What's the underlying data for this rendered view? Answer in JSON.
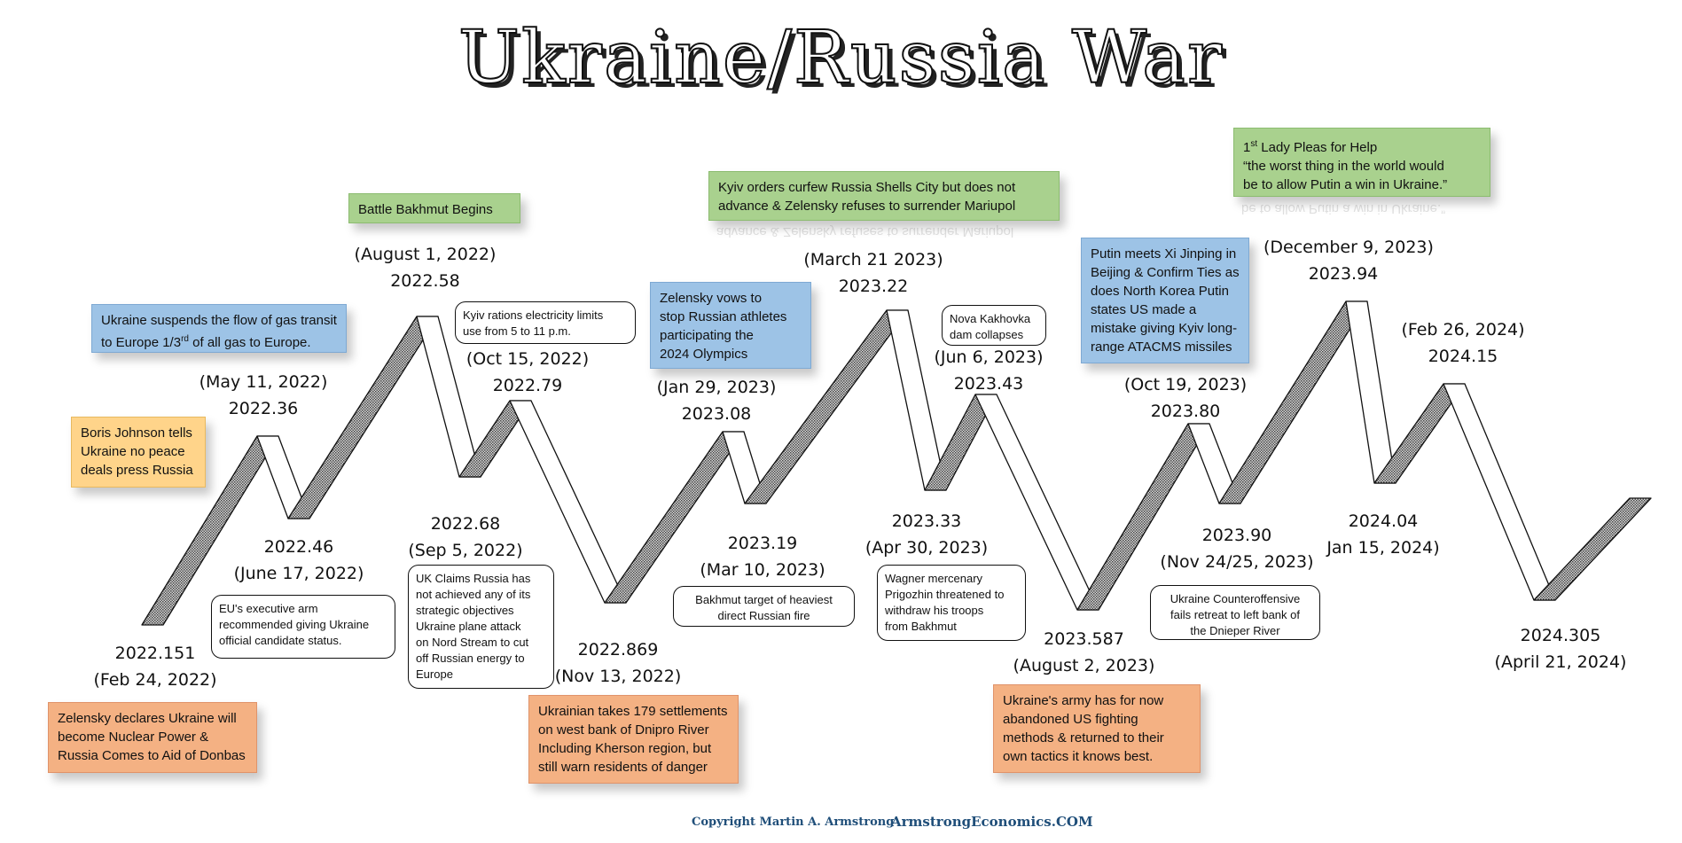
{
  "title": "Ukraine/Russia War",
  "chart_data": {
    "type": "line",
    "points": [
      {
        "value": "2022.151",
        "date": "(Feb 24, 2022)"
      },
      {
        "value": "2022.36",
        "date": "(May 11, 2022)"
      },
      {
        "value": "2022.46",
        "date": "(June 17, 2022)"
      },
      {
        "value": "2022.58",
        "date": "(August 1, 2022)"
      },
      {
        "value": "2022.68",
        "date": "(Sep 5, 2022)"
      },
      {
        "value": "2022.79",
        "date": "(Oct 15, 2022)"
      },
      {
        "value": "2022.869",
        "date": "(Nov 13, 2022)"
      },
      {
        "value": "2023.08",
        "date": "(Jan 29, 2023)"
      },
      {
        "value": "2023.19",
        "date": "(Mar 10, 2023)"
      },
      {
        "value": "2023.22",
        "date": "(March 21 2023)"
      },
      {
        "value": "2023.33",
        "date": "(Apr 30, 2023)"
      },
      {
        "value": "2023.43",
        "date": "(Jun 6, 2023)"
      },
      {
        "value": "2023.587",
        "date": "(August 2, 2023)"
      },
      {
        "value": "2023.80",
        "date": "(Oct 19, 2023)"
      },
      {
        "value": "2023.90",
        "date": "(Nov 24/25, 2023)"
      },
      {
        "value": "2023.94",
        "date": "(December 9, 2023)"
      },
      {
        "value": "2024.04",
        "date": "Jan 15, 2024)"
      },
      {
        "value": "2024.15",
        "date": "(Feb 26, 2024)"
      },
      {
        "value": "2024.305",
        "date": "(April 21, 2024)"
      }
    ]
  },
  "annotations": {
    "zelensky_nuclear": [
      "Zelensky declares Ukraine will",
      "become Nuclear Power &",
      "Russia Comes to Aid of Donbas"
    ],
    "boris_johnson": [
      "Boris Johnson tells",
      "Ukraine no peace",
      "deals press Russia"
    ],
    "gas_transit": [
      "Ukraine suspends the flow of gas transit",
      "to Europe 1/3rd of all gas to Europe."
    ],
    "battle_bakhmut": "Battle Bakhmut Begins",
    "eu_candidate": [
      "EU's executive arm",
      "recommended giving Ukraine",
      "official candidate status."
    ],
    "kyiv_rations": [
      "Kyiv rations electricity limits",
      "use from 5 to 11 p.m."
    ],
    "uk_claims": [
      "UK Claims Russia has",
      "not achieved any of its",
      "strategic objectives",
      "Ukraine plane attack",
      "on Nord Stream to cut",
      "off Russian energy to",
      "Europe"
    ],
    "settlements": [
      "Ukrainian takes 179 settlements",
      "on west bank of Dnipro River",
      "Including Kherson region, but",
      "still warn residents of danger"
    ],
    "zelensky_olympics": [
      "Zelensky vows to",
      "stop Russian athletes",
      "participating the",
      "2024 Olympics"
    ],
    "bakhmut_fire": [
      "Bakhmut target of heaviest",
      "direct Russian fire"
    ],
    "kyiv_curfew": [
      "Kyiv orders curfew Russia Shells City but does not",
      "advance & Zelensky refuses to surrender Mariupol"
    ],
    "nova_kakhovka": [
      "Nova Kakhovka",
      "dam collapses"
    ],
    "wagner": [
      "Wagner mercenary",
      "Prigozhin threatened to",
      "withdraw his troops",
      "from  Bakhmut"
    ],
    "ukraine_army": [
      "Ukraine's army has for now",
      "abandoned US fighting",
      "methods & returned to their",
      "own tactics it knows best."
    ],
    "putin_xi": [
      "Putin meets Xi Jinping in",
      "Beijing & Confirm Ties as",
      "does North Korea Putin",
      "states US made a",
      "mistake giving Kyiv long-",
      "range ATACMS missiles"
    ],
    "counteroffensive": [
      "Ukraine Counteroffensive",
      "fails retreat to left bank of",
      "the Dnieper River"
    ],
    "first_lady": [
      "1st Lady Pleas for Help",
      "“the worst thing in the world would",
      "be to allow Putin a win in Ukraine.”"
    ]
  },
  "copyright": "Copyright Martin A. Armstrong",
  "website": "ArmstrongEconomics.COM",
  "colors": {
    "green": "#a9d18e",
    "blue": "#9dc3e6",
    "yellow": "#ffd48a",
    "orange": "#f4b183",
    "ribbon_fill": "#777777"
  }
}
